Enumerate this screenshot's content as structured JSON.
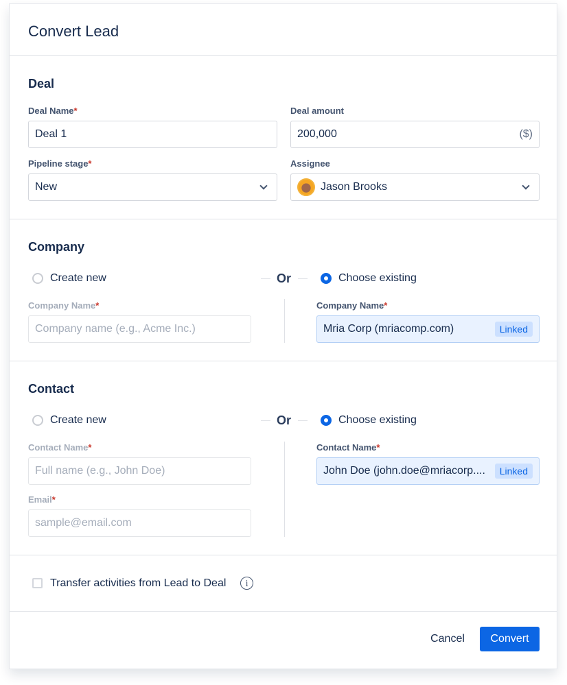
{
  "dialog": {
    "title": "Convert Lead"
  },
  "deal": {
    "heading": "Deal",
    "deal_name": {
      "label": "Deal Name",
      "required": "*",
      "value": "Deal 1"
    },
    "deal_amount": {
      "label": "Deal amount",
      "value": "200,000",
      "suffix": "($)"
    },
    "pipeline_stage": {
      "label": "Pipeline stage",
      "required": "*",
      "value": "New"
    },
    "assignee": {
      "label": "Assignee",
      "value": "Jason Brooks"
    }
  },
  "company": {
    "heading": "Company",
    "create_new": "Create new",
    "or": "Or",
    "choose_existing": "Choose existing",
    "selected": "choose_existing",
    "new_label": "Company Name",
    "new_placeholder": "Company name (e.g., Acme Inc.)",
    "existing_label": "Company Name",
    "existing_value": "Mria Corp (mriacomp.com)",
    "badge": "Linked",
    "required": "*"
  },
  "contact": {
    "heading": "Contact",
    "create_new": "Create new",
    "or": "Or",
    "choose_existing": "Choose existing",
    "selected": "choose_existing",
    "new_label": "Contact Name",
    "new_placeholder": "Full name (e.g., John Doe)",
    "email_label": "Email",
    "email_placeholder": "sample@email.com",
    "existing_label": "Contact Name",
    "existing_value": "John Doe (john.doe@mriacorp....",
    "badge": "Linked",
    "required": "*"
  },
  "transfer": {
    "label": "Transfer activities from Lead to Deal",
    "checked": false
  },
  "footer": {
    "cancel": "Cancel",
    "convert": "Convert"
  },
  "colors": {
    "primary": "#0c66e4",
    "required": "#c9372c",
    "linked_bg": "#e9f2ff"
  }
}
